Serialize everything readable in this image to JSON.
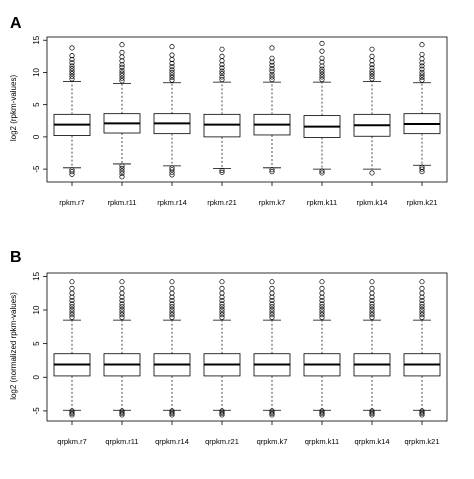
{
  "chart_data": [
    {
      "type": "boxplot",
      "panel_label": "A",
      "ylabel": "log2 (rpkm-values)",
      "ylim": [
        -7,
        15.5
      ],
      "yticks": [
        -5,
        0,
        5,
        10,
        15
      ],
      "grid": false,
      "categories": [
        "rpkm.r7",
        "rpkm.r11",
        "rpkm.r14",
        "rpkm.r21",
        "rpkm.k7",
        "rpkm.k11",
        "rpkm.k14",
        "rpkm.k21"
      ],
      "boxes": [
        {
          "whisker_low": -4.8,
          "q1": 0.2,
          "median": 1.9,
          "q3": 3.5,
          "whisker_high": 8.6,
          "outliers_high": [
            9.0,
            9.4,
            9.8,
            10.2,
            10.6,
            11.0,
            11.5,
            12.0,
            12.6,
            13.8
          ],
          "outliers_low": [
            -5.1,
            -5.4,
            -5.8
          ]
        },
        {
          "whisker_low": -4.2,
          "q1": 0.6,
          "median": 2.1,
          "q3": 3.6,
          "whisker_high": 8.3,
          "outliers_high": [
            8.7,
            9.1,
            9.5,
            9.9,
            10.3,
            10.8,
            11.2,
            11.8,
            12.4,
            13.1,
            14.3
          ],
          "outliers_low": [
            -4.5,
            -4.9,
            -5.3,
            -5.7,
            -6.2
          ]
        },
        {
          "whisker_low": -4.5,
          "q1": 0.5,
          "median": 2.1,
          "q3": 3.6,
          "whisker_high": 8.4,
          "outliers_high": [
            8.8,
            9.2,
            9.6,
            10.0,
            10.4,
            10.9,
            11.4,
            12.0,
            12.7,
            14.0
          ],
          "outliers_low": [
            -4.8,
            -5.1,
            -5.5,
            -5.9
          ]
        },
        {
          "whisker_low": -4.9,
          "q1": 0.0,
          "median": 1.9,
          "q3": 3.5,
          "whisker_high": 8.5,
          "outliers_high": [
            8.9,
            9.3,
            9.8,
            10.2,
            10.7,
            11.2,
            11.8,
            12.5,
            13.6
          ],
          "outliers_low": [
            -5.2,
            -5.5
          ]
        },
        {
          "whisker_low": -4.8,
          "q1": 0.3,
          "median": 1.9,
          "q3": 3.5,
          "whisker_high": 8.5,
          "outliers_high": [
            8.9,
            9.3,
            9.7,
            10.2,
            10.6,
            11.1,
            11.6,
            12.2,
            13.8
          ],
          "outliers_low": [
            -5.1,
            -5.4
          ]
        },
        {
          "whisker_low": -5.0,
          "q1": -0.1,
          "median": 1.6,
          "q3": 3.3,
          "whisker_high": 8.5,
          "outliers_high": [
            8.9,
            9.3,
            9.7,
            10.1,
            10.5,
            11.0,
            11.6,
            12.2,
            13.3,
            14.5
          ],
          "outliers_low": [
            -5.3,
            -5.6
          ]
        },
        {
          "whisker_low": -5.0,
          "q1": 0.1,
          "median": 1.8,
          "q3": 3.5,
          "whisker_high": 8.6,
          "outliers_high": [
            9.0,
            9.4,
            9.8,
            10.2,
            10.7,
            11.2,
            11.8,
            12.5,
            13.6
          ],
          "outliers_low": [
            -5.6
          ]
        },
        {
          "whisker_low": -4.4,
          "q1": 0.5,
          "median": 2.0,
          "q3": 3.6,
          "whisker_high": 8.4,
          "outliers_high": [
            8.8,
            9.2,
            9.6,
            10.0,
            10.5,
            11.0,
            11.5,
            12.1,
            12.8,
            14.3
          ],
          "outliers_low": [
            -4.7,
            -5.0,
            -5.4
          ]
        }
      ]
    },
    {
      "type": "boxplot",
      "panel_label": "B",
      "ylabel": "log2 (normalized rpkm-values)",
      "ylim": [
        -6.5,
        15.5
      ],
      "yticks": [
        -5,
        0,
        5,
        10,
        15
      ],
      "grid": false,
      "categories": [
        "qrpkm.r7",
        "qrpkm.r11",
        "qrpkm.r14",
        "qrpkm.r21",
        "qrpkm.k7",
        "qrpkm.k11",
        "qrpkm.k14",
        "qrpkm.k21"
      ],
      "boxes": [
        {
          "whisker_low": -4.9,
          "q1": 0.2,
          "median": 1.9,
          "q3": 3.5,
          "whisker_high": 8.5,
          "outliers_high": [
            8.9,
            9.3,
            9.7,
            10.1,
            10.5,
            10.9,
            11.4,
            11.9,
            12.5,
            13.2,
            14.2
          ],
          "outliers_low": [
            -5.0,
            -5.2,
            -5.4,
            -5.6
          ]
        },
        {
          "whisker_low": -4.9,
          "q1": 0.2,
          "median": 1.9,
          "q3": 3.5,
          "whisker_high": 8.5,
          "outliers_high": [
            8.9,
            9.3,
            9.7,
            10.1,
            10.5,
            10.9,
            11.4,
            11.9,
            12.5,
            13.2,
            14.2
          ],
          "outliers_low": [
            -5.0,
            -5.2,
            -5.4,
            -5.6
          ]
        },
        {
          "whisker_low": -4.9,
          "q1": 0.2,
          "median": 1.9,
          "q3": 3.5,
          "whisker_high": 8.5,
          "outliers_high": [
            8.9,
            9.3,
            9.7,
            10.1,
            10.5,
            10.9,
            11.4,
            11.9,
            12.5,
            13.2,
            14.2
          ],
          "outliers_low": [
            -5.0,
            -5.2,
            -5.4,
            -5.6
          ]
        },
        {
          "whisker_low": -4.9,
          "q1": 0.2,
          "median": 1.9,
          "q3": 3.5,
          "whisker_high": 8.5,
          "outliers_high": [
            8.9,
            9.3,
            9.7,
            10.1,
            10.5,
            10.9,
            11.4,
            11.9,
            12.5,
            13.2,
            14.2
          ],
          "outliers_low": [
            -5.0,
            -5.2,
            -5.4,
            -5.6
          ]
        },
        {
          "whisker_low": -4.9,
          "q1": 0.2,
          "median": 1.9,
          "q3": 3.5,
          "whisker_high": 8.5,
          "outliers_high": [
            8.9,
            9.3,
            9.7,
            10.1,
            10.5,
            10.9,
            11.4,
            11.9,
            12.5,
            13.2,
            14.2
          ],
          "outliers_low": [
            -5.0,
            -5.2,
            -5.4,
            -5.6
          ]
        },
        {
          "whisker_low": -4.9,
          "q1": 0.2,
          "median": 1.9,
          "q3": 3.5,
          "whisker_high": 8.5,
          "outliers_high": [
            8.9,
            9.3,
            9.7,
            10.1,
            10.5,
            10.9,
            11.4,
            11.9,
            12.5,
            13.2,
            14.2
          ],
          "outliers_low": [
            -5.0,
            -5.2,
            -5.4,
            -5.6
          ]
        },
        {
          "whisker_low": -4.9,
          "q1": 0.2,
          "median": 1.9,
          "q3": 3.5,
          "whisker_high": 8.5,
          "outliers_high": [
            8.9,
            9.3,
            9.7,
            10.1,
            10.5,
            10.9,
            11.4,
            11.9,
            12.5,
            13.2,
            14.2
          ],
          "outliers_low": [
            -5.0,
            -5.2,
            -5.4,
            -5.6
          ]
        },
        {
          "whisker_low": -4.9,
          "q1": 0.2,
          "median": 1.9,
          "q3": 3.5,
          "whisker_high": 8.5,
          "outliers_high": [
            8.9,
            9.3,
            9.7,
            10.1,
            10.5,
            10.9,
            11.4,
            11.9,
            12.5,
            13.2,
            14.2
          ],
          "outliers_low": [
            -5.0,
            -5.2,
            -5.4,
            -5.6
          ]
        }
      ]
    }
  ]
}
